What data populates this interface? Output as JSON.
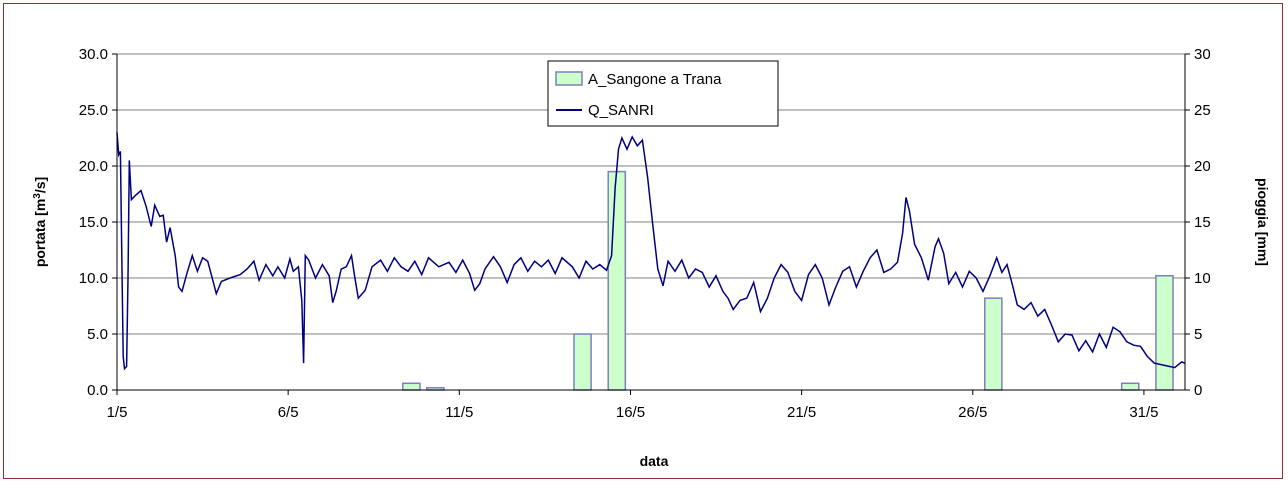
{
  "chart_data": {
    "type": "bar+line",
    "xlabel": "data",
    "ylabel_left": "portata [m",
    "ylabel_left_sup": "3",
    "ylabel_left_end": "/s]",
    "ylabel_right": "pioggia [mm]",
    "ylim_left": [
      0,
      30
    ],
    "ylim_right": [
      0,
      30
    ],
    "y_ticks_left": [
      "0.0",
      "5.0",
      "10.0",
      "15.0",
      "20.0",
      "25.0",
      "30.0"
    ],
    "y_ticks_right": [
      "0",
      "5",
      "10",
      "15",
      "20",
      "25",
      "30"
    ],
    "x_range_days": [
      1,
      32.2
    ],
    "x_ticks": [
      {
        "day": 1,
        "label": "1/5"
      },
      {
        "day": 6,
        "label": "6/5"
      },
      {
        "day": 11,
        "label": "11/5"
      },
      {
        "day": 16,
        "label": "16/5"
      },
      {
        "day": 21,
        "label": "21/5"
      },
      {
        "day": 26,
        "label": "26/5"
      },
      {
        "day": 31,
        "label": "31/5"
      }
    ],
    "grid": "horizontal",
    "legend_position": "top-center",
    "series": [
      {
        "name": "A_Sangone a Trana",
        "kind": "bar",
        "axis": "right",
        "color": "#ccffcc",
        "edge": "#7f7fbf",
        "points": [
          {
            "day": 9.6,
            "value": 0.6
          },
          {
            "day": 10.3,
            "value": 0.2
          },
          {
            "day": 14.6,
            "value": 5.0
          },
          {
            "day": 15.6,
            "value": 19.5
          },
          {
            "day": 26.6,
            "value": 8.2
          },
          {
            "day": 30.6,
            "value": 0.6
          },
          {
            "day": 31.6,
            "value": 10.2
          }
        ]
      },
      {
        "name": "Q_SANRI",
        "kind": "line",
        "axis": "left",
        "color": "#000080",
        "points": [
          [
            1.0,
            23.0
          ],
          [
            1.05,
            21.0
          ],
          [
            1.1,
            21.3
          ],
          [
            1.14,
            12.0
          ],
          [
            1.18,
            3.0
          ],
          [
            1.22,
            1.9
          ],
          [
            1.28,
            2.1
          ],
          [
            1.32,
            10.0
          ],
          [
            1.36,
            20.5
          ],
          [
            1.42,
            17.0
          ],
          [
            1.55,
            17.4
          ],
          [
            1.7,
            17.8
          ],
          [
            1.85,
            16.4
          ],
          [
            2.0,
            14.6
          ],
          [
            2.1,
            16.5
          ],
          [
            2.25,
            15.5
          ],
          [
            2.35,
            15.6
          ],
          [
            2.45,
            13.2
          ],
          [
            2.55,
            14.5
          ],
          [
            2.7,
            12.0
          ],
          [
            2.8,
            9.2
          ],
          [
            2.9,
            8.8
          ],
          [
            3.05,
            10.5
          ],
          [
            3.2,
            12.0
          ],
          [
            3.35,
            10.6
          ],
          [
            3.5,
            11.8
          ],
          [
            3.65,
            11.5
          ],
          [
            3.8,
            9.8
          ],
          [
            3.9,
            8.6
          ],
          [
            4.05,
            9.7
          ],
          [
            4.3,
            10.0
          ],
          [
            4.6,
            10.3
          ],
          [
            4.8,
            10.8
          ],
          [
            5.0,
            11.5
          ],
          [
            5.15,
            9.8
          ],
          [
            5.35,
            11.2
          ],
          [
            5.55,
            10.2
          ],
          [
            5.7,
            11.0
          ],
          [
            5.9,
            10.0
          ],
          [
            6.05,
            11.7
          ],
          [
            6.15,
            10.6
          ],
          [
            6.3,
            11.0
          ],
          [
            6.4,
            8.0
          ],
          [
            6.45,
            2.4
          ],
          [
            6.5,
            12.0
          ],
          [
            6.6,
            11.6
          ],
          [
            6.8,
            10.0
          ],
          [
            7.0,
            11.2
          ],
          [
            7.2,
            10.2
          ],
          [
            7.3,
            7.8
          ],
          [
            7.4,
            8.8
          ],
          [
            7.55,
            10.8
          ],
          [
            7.7,
            11.0
          ],
          [
            7.85,
            12.0
          ],
          [
            7.95,
            10.0
          ],
          [
            8.05,
            8.2
          ],
          [
            8.25,
            8.9
          ],
          [
            8.45,
            11.0
          ],
          [
            8.7,
            11.6
          ],
          [
            8.9,
            10.6
          ],
          [
            9.1,
            11.8
          ],
          [
            9.3,
            11.0
          ],
          [
            9.5,
            10.6
          ],
          [
            9.7,
            11.5
          ],
          [
            9.9,
            10.3
          ],
          [
            10.1,
            11.8
          ],
          [
            10.4,
            11.0
          ],
          [
            10.7,
            11.4
          ],
          [
            10.9,
            10.5
          ],
          [
            11.1,
            11.6
          ],
          [
            11.3,
            10.4
          ],
          [
            11.45,
            8.9
          ],
          [
            11.6,
            9.5
          ],
          [
            11.75,
            10.8
          ],
          [
            12.0,
            11.9
          ],
          [
            12.2,
            11.0
          ],
          [
            12.4,
            9.6
          ],
          [
            12.6,
            11.2
          ],
          [
            12.8,
            11.8
          ],
          [
            13.0,
            10.6
          ],
          [
            13.2,
            11.5
          ],
          [
            13.4,
            11.0
          ],
          [
            13.6,
            11.6
          ],
          [
            13.8,
            10.4
          ],
          [
            14.0,
            11.8
          ],
          [
            14.3,
            11.0
          ],
          [
            14.5,
            10.0
          ],
          [
            14.7,
            11.5
          ],
          [
            14.9,
            10.8
          ],
          [
            15.1,
            11.2
          ],
          [
            15.3,
            10.7
          ],
          [
            15.45,
            12.0
          ],
          [
            15.55,
            18.0
          ],
          [
            15.65,
            21.5
          ],
          [
            15.75,
            22.5
          ],
          [
            15.9,
            21.5
          ],
          [
            16.05,
            22.6
          ],
          [
            16.2,
            21.8
          ],
          [
            16.35,
            22.3
          ],
          [
            16.5,
            19.0
          ],
          [
            16.65,
            14.8
          ],
          [
            16.8,
            10.8
          ],
          [
            16.95,
            9.3
          ],
          [
            17.1,
            11.5
          ],
          [
            17.3,
            10.6
          ],
          [
            17.5,
            11.6
          ],
          [
            17.7,
            10.0
          ],
          [
            17.9,
            10.8
          ],
          [
            18.1,
            10.5
          ],
          [
            18.3,
            9.2
          ],
          [
            18.5,
            10.2
          ],
          [
            18.7,
            8.8
          ],
          [
            18.85,
            8.2
          ],
          [
            19.0,
            7.2
          ],
          [
            19.2,
            8.0
          ],
          [
            19.4,
            8.2
          ],
          [
            19.6,
            9.6
          ],
          [
            19.8,
            7.0
          ],
          [
            20.0,
            8.2
          ],
          [
            20.2,
            10.0
          ],
          [
            20.4,
            11.2
          ],
          [
            20.6,
            10.5
          ],
          [
            20.8,
            8.8
          ],
          [
            21.0,
            8.0
          ],
          [
            21.2,
            10.3
          ],
          [
            21.4,
            11.2
          ],
          [
            21.6,
            10.0
          ],
          [
            21.8,
            7.6
          ],
          [
            22.0,
            9.2
          ],
          [
            22.2,
            10.6
          ],
          [
            22.4,
            11.0
          ],
          [
            22.6,
            9.2
          ],
          [
            22.8,
            10.6
          ],
          [
            23.0,
            11.8
          ],
          [
            23.2,
            12.5
          ],
          [
            23.4,
            10.5
          ],
          [
            23.6,
            10.8
          ],
          [
            23.8,
            11.4
          ],
          [
            23.95,
            14.0
          ],
          [
            24.05,
            17.2
          ],
          [
            24.15,
            16.0
          ],
          [
            24.3,
            13.0
          ],
          [
            24.5,
            11.8
          ],
          [
            24.7,
            9.8
          ],
          [
            24.9,
            12.8
          ],
          [
            25.0,
            13.5
          ],
          [
            25.15,
            12.2
          ],
          [
            25.3,
            9.5
          ],
          [
            25.5,
            10.5
          ],
          [
            25.7,
            9.2
          ],
          [
            25.9,
            10.6
          ],
          [
            26.1,
            10.0
          ],
          [
            26.3,
            8.8
          ],
          [
            26.5,
            10.2
          ],
          [
            26.7,
            11.8
          ],
          [
            26.85,
            10.5
          ],
          [
            27.0,
            11.2
          ],
          [
            27.15,
            9.5
          ],
          [
            27.3,
            7.6
          ],
          [
            27.5,
            7.2
          ],
          [
            27.7,
            7.8
          ],
          [
            27.9,
            6.6
          ],
          [
            28.1,
            7.2
          ],
          [
            28.3,
            5.8
          ],
          [
            28.5,
            4.3
          ],
          [
            28.7,
            5.0
          ],
          [
            28.9,
            4.9
          ],
          [
            29.1,
            3.5
          ],
          [
            29.3,
            4.4
          ],
          [
            29.5,
            3.4
          ],
          [
            29.7,
            5.0
          ],
          [
            29.9,
            3.8
          ],
          [
            30.1,
            5.6
          ],
          [
            30.3,
            5.2
          ],
          [
            30.5,
            4.3
          ],
          [
            30.7,
            4.0
          ],
          [
            30.9,
            3.9
          ],
          [
            31.1,
            3.0
          ],
          [
            31.3,
            2.4
          ],
          [
            31.6,
            2.2
          ],
          [
            31.9,
            2.0
          ],
          [
            32.1,
            2.5
          ],
          [
            32.2,
            2.4
          ]
        ]
      }
    ]
  }
}
